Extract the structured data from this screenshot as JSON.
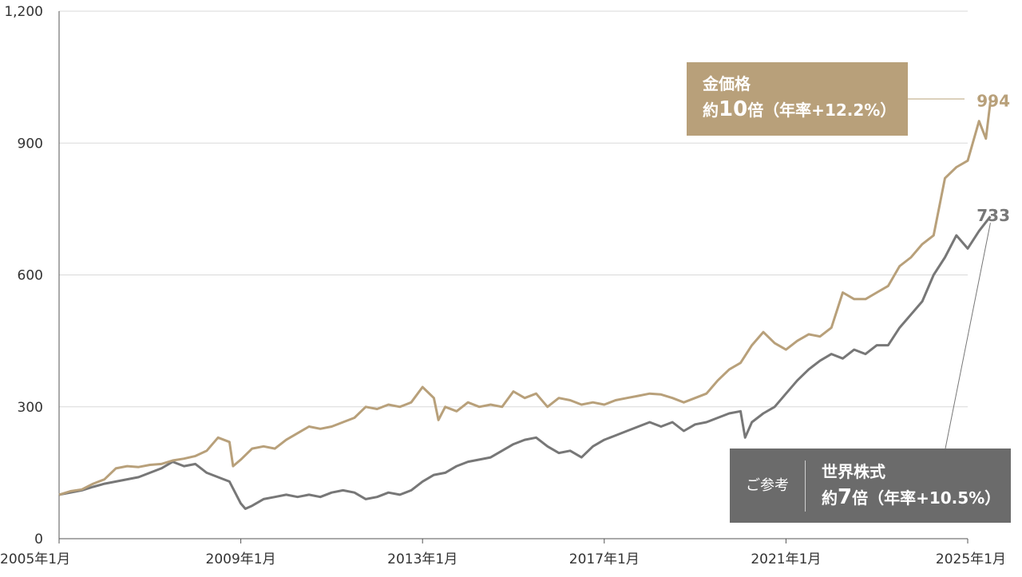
{
  "chart_data": {
    "type": "line",
    "title": "",
    "xlabel": "",
    "ylabel": "",
    "ylim": [
      0,
      1200
    ],
    "yticks": [
      "0",
      "300",
      "600",
      "900",
      "1,200"
    ],
    "ytick_values": [
      0,
      300,
      600,
      900,
      1200
    ],
    "xticks": [
      "2005年1月",
      "2009年1月",
      "2013年1月",
      "2017年1月",
      "2021年1月",
      "2025年1月"
    ],
    "xtick_values": [
      2005,
      2009,
      2013,
      2017,
      2021,
      2025
    ],
    "xlim": [
      2005,
      2025
    ],
    "grid": "horizontal",
    "series": [
      {
        "name": "金価格",
        "color": "#b8a07a",
        "end_value_label": "994",
        "points": [
          [
            2005.0,
            100
          ],
          [
            2005.25,
            108
          ],
          [
            2005.5,
            112
          ],
          [
            2005.75,
            125
          ],
          [
            2006.0,
            135
          ],
          [
            2006.25,
            160
          ],
          [
            2006.5,
            165
          ],
          [
            2006.75,
            163
          ],
          [
            2007.0,
            168
          ],
          [
            2007.25,
            170
          ],
          [
            2007.5,
            178
          ],
          [
            2007.75,
            182
          ],
          [
            2008.0,
            188
          ],
          [
            2008.25,
            200
          ],
          [
            2008.5,
            230
          ],
          [
            2008.75,
            220
          ],
          [
            2008.83,
            165
          ],
          [
            2009.0,
            180
          ],
          [
            2009.25,
            205
          ],
          [
            2009.5,
            210
          ],
          [
            2009.75,
            205
          ],
          [
            2010.0,
            225
          ],
          [
            2010.25,
            240
          ],
          [
            2010.5,
            255
          ],
          [
            2010.75,
            250
          ],
          [
            2011.0,
            255
          ],
          [
            2011.25,
            265
          ],
          [
            2011.5,
            275
          ],
          [
            2011.75,
            300
          ],
          [
            2012.0,
            295
          ],
          [
            2012.25,
            305
          ],
          [
            2012.5,
            300
          ],
          [
            2012.75,
            310
          ],
          [
            2013.0,
            345
          ],
          [
            2013.25,
            320
          ],
          [
            2013.35,
            270
          ],
          [
            2013.5,
            300
          ],
          [
            2013.75,
            290
          ],
          [
            2014.0,
            310
          ],
          [
            2014.25,
            300
          ],
          [
            2014.5,
            305
          ],
          [
            2014.75,
            300
          ],
          [
            2015.0,
            335
          ],
          [
            2015.25,
            320
          ],
          [
            2015.5,
            330
          ],
          [
            2015.75,
            300
          ],
          [
            2016.0,
            320
          ],
          [
            2016.25,
            315
          ],
          [
            2016.5,
            305
          ],
          [
            2016.75,
            310
          ],
          [
            2017.0,
            305
          ],
          [
            2017.25,
            315
          ],
          [
            2017.5,
            320
          ],
          [
            2017.75,
            325
          ],
          [
            2018.0,
            330
          ],
          [
            2018.25,
            328
          ],
          [
            2018.5,
            320
          ],
          [
            2018.75,
            310
          ],
          [
            2019.0,
            320
          ],
          [
            2019.25,
            330
          ],
          [
            2019.5,
            360
          ],
          [
            2019.75,
            385
          ],
          [
            2020.0,
            400
          ],
          [
            2020.25,
            440
          ],
          [
            2020.5,
            470
          ],
          [
            2020.75,
            445
          ],
          [
            2021.0,
            430
          ],
          [
            2021.25,
            450
          ],
          [
            2021.5,
            465
          ],
          [
            2021.75,
            460
          ],
          [
            2022.0,
            480
          ],
          [
            2022.25,
            560
          ],
          [
            2022.5,
            545
          ],
          [
            2022.75,
            545
          ],
          [
            2023.0,
            560
          ],
          [
            2023.25,
            575
          ],
          [
            2023.5,
            620
          ],
          [
            2023.75,
            640
          ],
          [
            2024.0,
            670
          ],
          [
            2024.25,
            690
          ],
          [
            2024.5,
            820
          ],
          [
            2024.75,
            845
          ],
          [
            2025.0,
            860
          ],
          [
            2025.25,
            950
          ],
          [
            2025.4,
            910
          ],
          [
            2025.5,
            994
          ]
        ]
      },
      {
        "name": "世界株式",
        "color": "#777777",
        "end_value_label": "733",
        "points": [
          [
            2005.0,
            100
          ],
          [
            2005.25,
            105
          ],
          [
            2005.5,
            110
          ],
          [
            2005.75,
            118
          ],
          [
            2006.0,
            125
          ],
          [
            2006.25,
            130
          ],
          [
            2006.5,
            135
          ],
          [
            2006.75,
            140
          ],
          [
            2007.0,
            150
          ],
          [
            2007.25,
            160
          ],
          [
            2007.5,
            175
          ],
          [
            2007.75,
            165
          ],
          [
            2008.0,
            170
          ],
          [
            2008.25,
            150
          ],
          [
            2008.5,
            140
          ],
          [
            2008.75,
            130
          ],
          [
            2009.0,
            80
          ],
          [
            2009.1,
            68
          ],
          [
            2009.25,
            75
          ],
          [
            2009.5,
            90
          ],
          [
            2009.75,
            95
          ],
          [
            2010.0,
            100
          ],
          [
            2010.25,
            95
          ],
          [
            2010.5,
            100
          ],
          [
            2010.75,
            95
          ],
          [
            2011.0,
            105
          ],
          [
            2011.25,
            110
          ],
          [
            2011.5,
            105
          ],
          [
            2011.75,
            90
          ],
          [
            2012.0,
            95
          ],
          [
            2012.25,
            105
          ],
          [
            2012.5,
            100
          ],
          [
            2012.75,
            110
          ],
          [
            2013.0,
            130
          ],
          [
            2013.25,
            145
          ],
          [
            2013.5,
            150
          ],
          [
            2013.75,
            165
          ],
          [
            2014.0,
            175
          ],
          [
            2014.25,
            180
          ],
          [
            2014.5,
            185
          ],
          [
            2014.75,
            200
          ],
          [
            2015.0,
            215
          ],
          [
            2015.25,
            225
          ],
          [
            2015.5,
            230
          ],
          [
            2015.75,
            210
          ],
          [
            2016.0,
            195
          ],
          [
            2016.25,
            200
          ],
          [
            2016.5,
            185
          ],
          [
            2016.75,
            210
          ],
          [
            2017.0,
            225
          ],
          [
            2017.25,
            235
          ],
          [
            2017.5,
            245
          ],
          [
            2017.75,
            255
          ],
          [
            2018.0,
            265
          ],
          [
            2018.25,
            255
          ],
          [
            2018.5,
            265
          ],
          [
            2018.75,
            245
          ],
          [
            2019.0,
            260
          ],
          [
            2019.25,
            265
          ],
          [
            2019.5,
            275
          ],
          [
            2019.75,
            285
          ],
          [
            2020.0,
            290
          ],
          [
            2020.1,
            230
          ],
          [
            2020.25,
            265
          ],
          [
            2020.5,
            285
          ],
          [
            2020.75,
            300
          ],
          [
            2021.0,
            330
          ],
          [
            2021.25,
            360
          ],
          [
            2021.5,
            385
          ],
          [
            2021.75,
            405
          ],
          [
            2022.0,
            420
          ],
          [
            2022.25,
            410
          ],
          [
            2022.5,
            430
          ],
          [
            2022.75,
            420
          ],
          [
            2023.0,
            440
          ],
          [
            2023.25,
            440
          ],
          [
            2023.5,
            480
          ],
          [
            2023.75,
            510
          ],
          [
            2024.0,
            540
          ],
          [
            2024.25,
            600
          ],
          [
            2024.5,
            640
          ],
          [
            2024.75,
            690
          ],
          [
            2025.0,
            660
          ],
          [
            2025.25,
            700
          ],
          [
            2025.5,
            733
          ]
        ]
      }
    ]
  },
  "legend": {
    "gold": {
      "name": "金価格",
      "line2_prefix": "約",
      "line2_big": "10",
      "line2_suffix": "倍（年率+12.2%）",
      "color": "#b8a07a"
    },
    "stock": {
      "ref_label": "ご参考",
      "name": "世界株式",
      "line2_prefix": "約",
      "line2_big": "7",
      "line2_suffix": "倍（年率+10.5%）",
      "color": "#777777"
    }
  }
}
